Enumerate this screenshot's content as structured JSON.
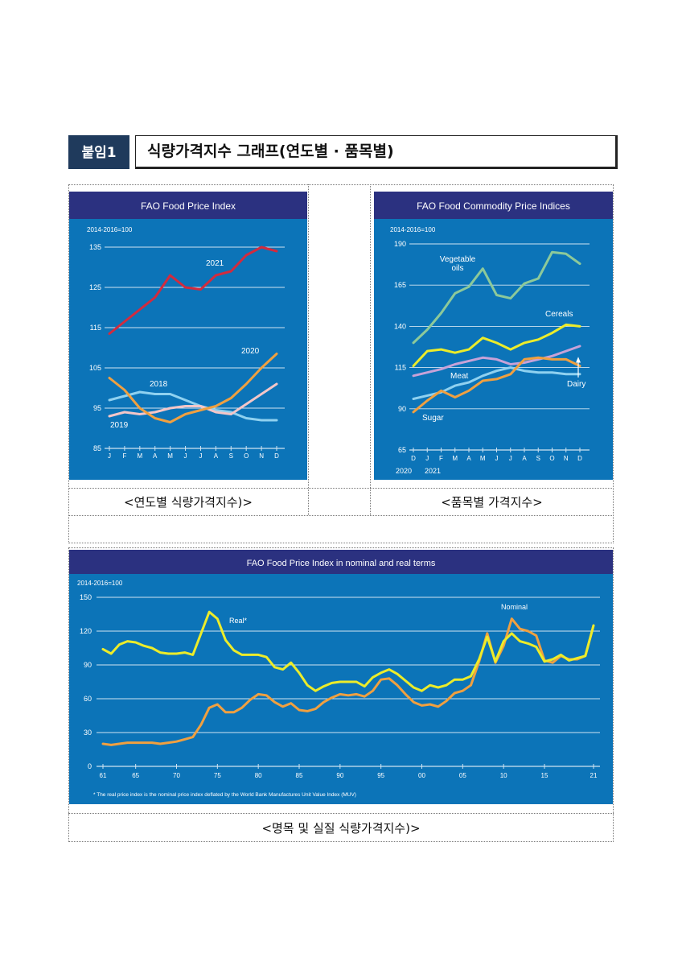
{
  "header": {
    "badge": "붙임1",
    "title": "식량가격지수 그래프(연도별 · 품목별)"
  },
  "captions": {
    "chart1": "<연도별 식량가격지수)>",
    "chart2": "<품목별 가격지수>",
    "chart3": "<명목 및 실질 식량가격지수)>"
  },
  "colors": {
    "panel_bg": "#0c74b8",
    "title_bg": "#2b3180",
    "grid": "#cfe3f2",
    "red": "#d22b3e",
    "orange": "#f0a040",
    "lightblue": "#8fd1f0",
    "pink": "#f3c6c8",
    "green": "#8cc99a",
    "yellow": "#ecec2a",
    "purple": "#c7a2d8",
    "white": "#ffffff"
  },
  "chart_data": [
    {
      "type": "line",
      "title": "FAO Food Price Index",
      "subtitle": "2014-2016=100",
      "x": [
        "J",
        "F",
        "M",
        "A",
        "M",
        "J",
        "J",
        "A",
        "S",
        "O",
        "N",
        "D"
      ],
      "ylim": [
        85,
        135
      ],
      "yticks": [
        85,
        95,
        105,
        115,
        125,
        135
      ],
      "series": [
        {
          "name": "2021",
          "color": "red",
          "values": [
            113.5,
            116.5,
            119.5,
            122.5,
            128,
            125,
            124.5,
            128,
            129,
            133,
            135,
            134
          ]
        },
        {
          "name": "2020",
          "color": "orange",
          "values": [
            102.5,
            99.5,
            95,
            92.5,
            91.5,
            93.5,
            94.5,
            95.5,
            97.5,
            101,
            105,
            108.5
          ]
        },
        {
          "name": "2018",
          "color": "lightblue",
          "values": [
            97,
            98,
            99,
            98.5,
            98.5,
            97,
            95.5,
            94.5,
            94,
            92.5,
            92,
            92
          ]
        },
        {
          "name": "2019",
          "color": "pink",
          "values": [
            93,
            94,
            93.5,
            94,
            95,
            95.5,
            95.5,
            94,
            93.5,
            96,
            98.5,
            101
          ]
        }
      ]
    },
    {
      "type": "line",
      "title": "FAO Food Commodity Price Indices",
      "subtitle": "2014-2016=100",
      "x": [
        "D",
        "J",
        "F",
        "M",
        "A",
        "M",
        "J",
        "J",
        "A",
        "S",
        "O",
        "N",
        "D"
      ],
      "x_years": [
        "2020",
        "2021"
      ],
      "ylim": [
        65,
        190
      ],
      "yticks": [
        65,
        90,
        115,
        140,
        165,
        190
      ],
      "series": [
        {
          "name": "Vegetable oils",
          "color": "green",
          "values": [
            130,
            138,
            148,
            160,
            164,
            175,
            159,
            157,
            166,
            169,
            185,
            184,
            178
          ]
        },
        {
          "name": "Cereals",
          "color": "yellow",
          "values": [
            116,
            125,
            126,
            124,
            126,
            133,
            130,
            126,
            130,
            132,
            136,
            141,
            140
          ]
        },
        {
          "name": "Meat",
          "color": "purple",
          "values": [
            110,
            112,
            114,
            117,
            119,
            121,
            120,
            117,
            118,
            120,
            122,
            125,
            128
          ]
        },
        {
          "name": "Dairy",
          "color": "lightblue",
          "values": [
            96,
            98,
            100,
            104,
            106,
            110,
            113,
            115,
            113,
            112,
            112,
            111,
            111
          ]
        },
        {
          "name": "Sugar",
          "color": "orange",
          "values": [
            88,
            95,
            101,
            97,
            101,
            107,
            108,
            111,
            120,
            121,
            120,
            120,
            116
          ]
        }
      ],
      "annotation": "arrow up at Dairy/Meat (D)"
    },
    {
      "type": "line",
      "title": "FAO Food Price Index in nominal and real terms",
      "subtitle": "2014-2016=100",
      "footnote": "* The real price index is the nominal price index deflated by the World Bank Manufactures Unit Value Index (MUV)",
      "xlim": [
        1961,
        2021
      ],
      "xtick_labels": [
        "61",
        "65",
        "70",
        "75",
        "80",
        "85",
        "90",
        "95",
        "00",
        "05",
        "10",
        "15",
        "21"
      ],
      "xtick_years": [
        1961,
        1965,
        1970,
        1975,
        1980,
        1985,
        1990,
        1995,
        2000,
        2005,
        2010,
        2015,
        2021
      ],
      "ylim": [
        0,
        150
      ],
      "yticks": [
        0,
        30,
        60,
        90,
        120,
        150
      ],
      "years": [
        1961,
        1962,
        1963,
        1964,
        1965,
        1966,
        1967,
        1968,
        1969,
        1970,
        1971,
        1972,
        1973,
        1974,
        1975,
        1976,
        1977,
        1978,
        1979,
        1980,
        1981,
        1982,
        1983,
        1984,
        1985,
        1986,
        1987,
        1988,
        1989,
        1990,
        1991,
        1992,
        1993,
        1994,
        1995,
        1996,
        1997,
        1998,
        1999,
        2000,
        2001,
        2002,
        2003,
        2004,
        2005,
        2006,
        2007,
        2008,
        2009,
        2010,
        2011,
        2012,
        2013,
        2014,
        2015,
        2016,
        2017,
        2018,
        2019,
        2020,
        2021
      ],
      "series": [
        {
          "name": "Real*",
          "color": "yellow",
          "values": [
            104,
            100,
            108,
            111,
            110,
            107,
            105,
            101,
            100,
            100,
            101,
            99,
            118,
            137,
            131,
            112,
            103,
            99,
            99,
            99,
            97,
            88,
            86,
            92,
            83,
            72,
            67,
            71,
            74,
            75,
            75,
            75,
            71,
            79,
            83,
            86,
            82,
            76,
            70,
            67,
            72,
            70,
            72,
            77,
            77,
            80,
            95,
            115,
            93,
            111,
            118,
            111,
            109,
            106,
            93,
            95,
            99,
            94,
            96,
            98,
            125
          ]
        },
        {
          "name": "Nominal",
          "color": "orange",
          "values": [
            20,
            19,
            20,
            21,
            21,
            21,
            21,
            20,
            21,
            22,
            24,
            26,
            37,
            52,
            55,
            48,
            48,
            52,
            59,
            64,
            63,
            57,
            53,
            56,
            50,
            49,
            51,
            57,
            61,
            64,
            63,
            64,
            62,
            67,
            77,
            78,
            72,
            64,
            57,
            54,
            55,
            53,
            58,
            65,
            67,
            72,
            93,
            118,
            92,
            107,
            131,
            122,
            120,
            116,
            94,
            92,
            98,
            95,
            95,
            98,
            125
          ]
        }
      ]
    }
  ]
}
